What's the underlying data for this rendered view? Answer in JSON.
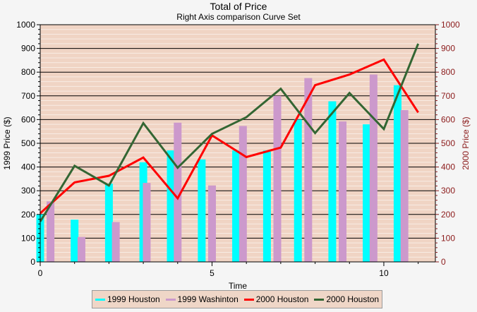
{
  "chart_data": {
    "type": "bar",
    "title": "Total of Price",
    "subtitle": "Right Axis comparison Curve Set",
    "xlabel": "Time",
    "ylabel": "1999 Price ($)",
    "y2label": "2000 Price ($)",
    "xlim": [
      0,
      11.5
    ],
    "ylim": [
      0,
      1000
    ],
    "y2lim": [
      0,
      1000
    ],
    "xticks": [
      0,
      5,
      10
    ],
    "yticks": [
      0,
      100,
      200,
      300,
      400,
      500,
      600,
      700,
      800,
      900,
      1000
    ],
    "y2ticks": [
      0,
      100,
      200,
      300,
      400,
      500,
      600,
      700,
      800,
      900,
      1000
    ],
    "grid": true,
    "legend_position": "bottom",
    "colors": {
      "plot_background": "#f0d4c4",
      "minor_grid": "#f8ece4",
      "major_grid": "#000000",
      "right_axis": "#8b1a1a"
    },
    "series": [
      {
        "name": "1999 Houston",
        "kind": "bar",
        "color": "#00ffff",
        "x": [
          0.0,
          1.0,
          2.0,
          3.0,
          3.8,
          4.7,
          5.7,
          6.6,
          7.5,
          8.5,
          9.5,
          10.4
        ],
        "values": [
          200,
          178,
          330,
          420,
          470,
          432,
          470,
          470,
          600,
          677,
          580,
          745
        ]
      },
      {
        "name": "1999 Washinton",
        "kind": "bar",
        "color": "#cc99cc",
        "x": [
          0.3,
          1.2,
          2.2,
          3.1,
          4.0,
          5.0,
          5.9,
          6.9,
          7.8,
          8.8,
          9.7,
          10.6
        ],
        "values": [
          255,
          105,
          168,
          333,
          587,
          322,
          573,
          700,
          775,
          592,
          790,
          640
        ]
      },
      {
        "name": "2000 Houston",
        "kind": "line",
        "axis": "right",
        "color": "#ff0000",
        "x": [
          0,
          1,
          2,
          3,
          4,
          5,
          6,
          7,
          8,
          9,
          10,
          11
        ],
        "values": [
          205,
          335,
          363,
          440,
          268,
          533,
          442,
          482,
          745,
          790,
          853,
          630
        ]
      },
      {
        "name": "2000 Houston",
        "kind": "line",
        "axis": "right",
        "color": "#336633",
        "x": [
          0,
          1,
          2,
          3,
          4,
          5,
          6,
          7,
          8,
          9,
          10,
          11
        ],
        "values": [
          170,
          405,
          322,
          585,
          397,
          540,
          610,
          730,
          543,
          712,
          560,
          920
        ]
      }
    ]
  }
}
